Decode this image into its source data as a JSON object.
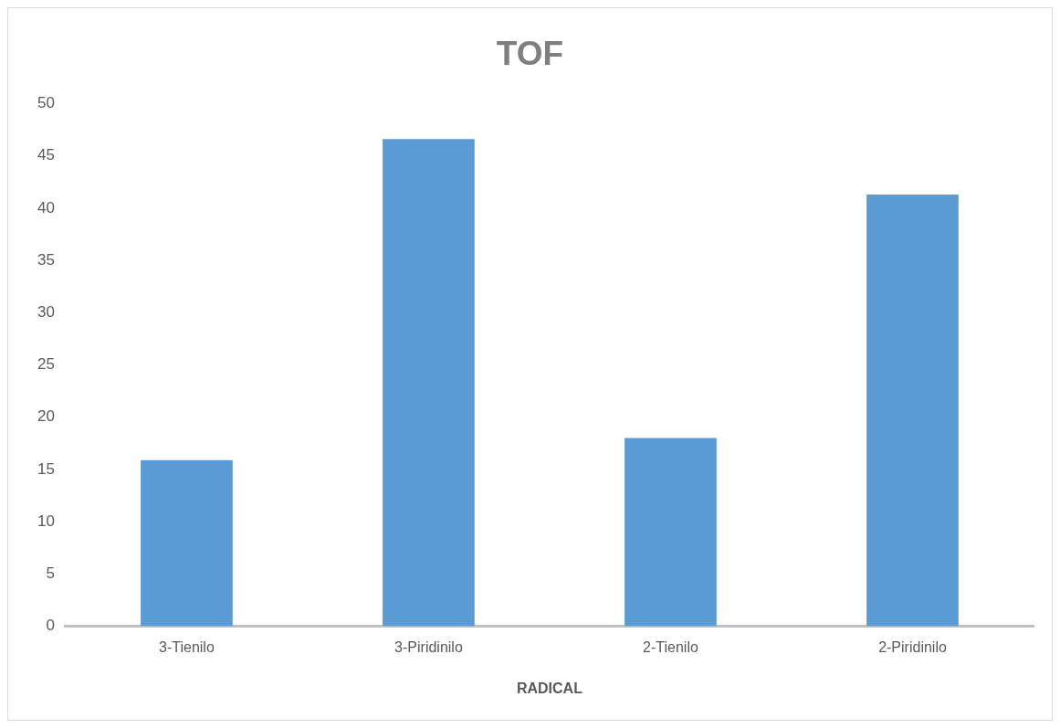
{
  "chart_data": {
    "type": "bar",
    "title": "TOF",
    "xlabel": "RADICAL",
    "categories": [
      "3-Tienilo",
      "3-Piridinilo",
      "2-Tienilo",
      "2-Piridinilo"
    ],
    "values": [
      15.9,
      46.6,
      18.0,
      41.3
    ],
    "color": "#5b9bd5",
    "ylim": [
      0,
      50
    ],
    "yticks": [
      0,
      5,
      10,
      15,
      20,
      25,
      30,
      35,
      40,
      45,
      50
    ],
    "grid": false,
    "legend": false
  }
}
